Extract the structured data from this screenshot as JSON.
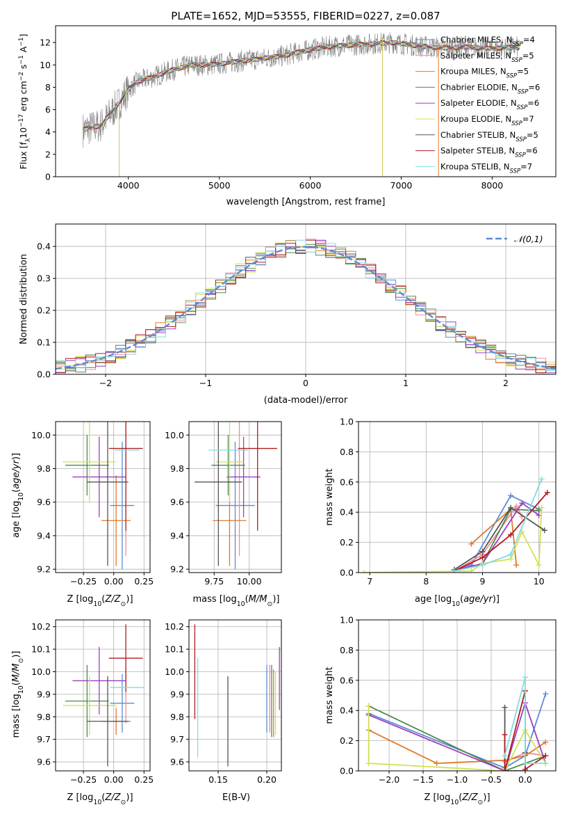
{
  "figure_title": "PLATE=1652, MJD=53555, FIBERID=0227, z=0.087",
  "legend_models": [
    {
      "label": "Chabrier MILES, N",
      "n": "4",
      "color": "#5b8bd6"
    },
    {
      "label": "Salpeter MILES, N",
      "n": "5",
      "color": "#f08a9a"
    },
    {
      "label": "Kroupa MILES, N",
      "n": "5",
      "color": "#e0782c"
    },
    {
      "label": "Chabrier ELODIE, N",
      "n": "6",
      "color": "#4a8a4a"
    },
    {
      "label": "Salpeter ELODIE, N",
      "n": "6",
      "color": "#9a3fbf"
    },
    {
      "label": "Kroupa ELODIE, N",
      "n": "7",
      "color": "#d4e050"
    },
    {
      "label": "Chabrier STELIB, N",
      "n": "5",
      "color": "#555555"
    },
    {
      "label": "Salpeter STELIB, N",
      "n": "6",
      "color": "#b01c1c"
    },
    {
      "label": "Kroupa STELIB, N",
      "n": "7",
      "color": "#80dde0"
    }
  ],
  "legend_sub": "SSP",
  "chart_data": [
    {
      "id": "spectrum",
      "type": "line",
      "title": "PLATE=1652, MJD=53555, FIBERID=0227, z=0.087",
      "xlabel": "wavelength [Angstrom, rest frame]",
      "ylabel": "Flux [f_λ 10^-17 erg cm^-2 s^-1 A^-1]",
      "xlim": [
        3200,
        8700
      ],
      "ylim": [
        0,
        13.5
      ],
      "xticks": [
        "4000",
        "5000",
        "6000",
        "7000",
        "8000"
      ],
      "yticks": [
        "0",
        "2",
        "4",
        "6",
        "8",
        "10",
        "12"
      ],
      "data_x": [
        3500,
        3700,
        3900,
        4000,
        4100,
        4300,
        4500,
        4700,
        4900,
        5100,
        5300,
        5500,
        5700,
        5900,
        6100,
        6300,
        6500,
        6700,
        6900,
        7100,
        7300,
        7500,
        7700,
        7900,
        8100,
        8300
      ],
      "model_y": [
        4.2,
        4.6,
        6.6,
        7.8,
        8.5,
        9.0,
        9.6,
        10.0,
        10.0,
        10.2,
        10.4,
        10.6,
        10.8,
        11.2,
        11.5,
        11.7,
        11.8,
        11.9,
        12.0,
        11.8,
        11.6,
        11.5,
        11.6,
        11.5,
        11.5,
        11.6
      ],
      "data_noise": 1.0,
      "spike_lines": [
        {
          "x": 3900,
          "ymin": 0,
          "ymax": 6.5
        },
        {
          "x": 6795,
          "ymin": 0,
          "ymax": 12.5
        },
        {
          "x": 7410,
          "ymin": 0,
          "ymax": 12.0
        }
      ]
    },
    {
      "id": "residuals",
      "type": "histogram",
      "xlabel": "(data-model)/error",
      "ylabel": "Normed distribution",
      "xlim": [
        -2.5,
        2.5
      ],
      "ylim": [
        0,
        0.47
      ],
      "xticks": [
        "−2",
        "−1",
        "0",
        "1",
        "2"
      ],
      "yticks": [
        "0.0",
        "0.1",
        "0.2",
        "0.3",
        "0.4"
      ],
      "bin_start": -2.5,
      "bin_width": 0.1,
      "reference_curve": {
        "name": "𝒩(0,1)",
        "color": "#5b8bd6"
      }
    },
    {
      "id": "age-vs-Z",
      "type": "errorbar",
      "xlabel": "Z [log10(Z/Z⊙)]",
      "ylabel": "age  [log10(age/yr)]",
      "xlim": [
        -0.48,
        0.3
      ],
      "ylim": [
        9.18,
        10.08
      ],
      "xticks": [
        "−0.25",
        "0.00",
        "0.25"
      ],
      "yticks": [
        "9.2",
        "9.4",
        "9.6",
        "9.8",
        "10.0"
      ],
      "points": [
        {
          "x": 0.07,
          "y": 9.58,
          "xerr": 0.1,
          "yerr": 0.38,
          "color": "#5b8bd6"
        },
        {
          "x": 0.1,
          "y": 9.72,
          "xerr": 0.0,
          "yerr": 0.44,
          "color": "#f08a9a"
        },
        {
          "x": 0.02,
          "y": 9.49,
          "xerr": 0.12,
          "yerr": 0.27,
          "color": "#e0782c"
        },
        {
          "x": -0.22,
          "y": 9.82,
          "xerr": 0.18,
          "yerr": 0.18,
          "color": "#4a8a4a"
        },
        {
          "x": -0.12,
          "y": 9.75,
          "xerr": 0.22,
          "yerr": 0.24,
          "color": "#9a3fbf"
        },
        {
          "x": -0.2,
          "y": 9.84,
          "xerr": 0.22,
          "yerr": 0.24,
          "color": "#d4e050"
        },
        {
          "x": -0.05,
          "y": 9.72,
          "xerr": 0.17,
          "yerr": 0.5,
          "color": "#555555"
        },
        {
          "x": 0.1,
          "y": 9.92,
          "xerr": 0.14,
          "yerr": 0.49,
          "color": "#b01c1c"
        },
        {
          "x": 0.11,
          "y": 9.91,
          "xerr": 0.1,
          "yerr": 0.0,
          "color": "#80dde0"
        }
      ]
    },
    {
      "id": "age-vs-mass",
      "type": "errorbar",
      "xlabel": "mass [log10(M/M⊙)]",
      "ylabel": "",
      "xlim": [
        9.57,
        10.23
      ],
      "ylim": [
        9.18,
        10.08
      ],
      "xticks": [
        "9.75",
        "10.00"
      ],
      "yticks": [
        "9.2",
        "9.4",
        "9.6",
        "9.8",
        "10.0"
      ],
      "points": [
        {
          "x": 9.9,
          "y": 9.58,
          "xerr": 0.14,
          "yerr": 0.38,
          "color": "#5b8bd6"
        },
        {
          "x": 9.93,
          "y": 9.72,
          "xerr": 0.0,
          "yerr": 0.44,
          "color": "#f08a9a"
        },
        {
          "x": 9.86,
          "y": 9.49,
          "xerr": 0.12,
          "yerr": 0.27,
          "color": "#e0782c"
        },
        {
          "x": 9.85,
          "y": 9.82,
          "xerr": 0.12,
          "yerr": 0.18,
          "color": "#4a8a4a"
        },
        {
          "x": 9.96,
          "y": 9.75,
          "xerr": 0.12,
          "yerr": 0.24,
          "color": "#9a3fbf"
        },
        {
          "x": 9.86,
          "y": 9.84,
          "xerr": 0.1,
          "yerr": 0.24,
          "color": "#d4e050"
        },
        {
          "x": 9.78,
          "y": 9.72,
          "xerr": 0.17,
          "yerr": 0.5,
          "color": "#555555"
        },
        {
          "x": 10.06,
          "y": 9.92,
          "xerr": 0.14,
          "yerr": 0.49,
          "color": "#b01c1c"
        },
        {
          "x": 9.85,
          "y": 9.91,
          "xerr": 0.14,
          "yerr": 0.0,
          "color": "#80dde0"
        }
      ]
    },
    {
      "id": "weight-vs-age",
      "type": "line",
      "xlabel": "age  [log10(age/yr)]",
      "ylabel": "mass weight",
      "xlim": [
        6.8,
        10.3
      ],
      "ylim": [
        0,
        1.0
      ],
      "xticks": [
        "7",
        "8",
        "9",
        "10"
      ],
      "yticks": [
        "0.0",
        "0.2",
        "0.4",
        "0.6",
        "0.8",
        "1.0"
      ],
      "series": [
        {
          "color": "#5b8bd6",
          "x": [
            8.5,
            8.8,
            9.5,
            10.0
          ],
          "y": [
            0.01,
            0.05,
            0.51,
            0.42
          ]
        },
        {
          "color": "#f08a9a",
          "x": [
            8.5,
            9.0,
            9.6,
            9.7
          ],
          "y": [
            0.01,
            0.12,
            0.44,
            0.37
          ]
        },
        {
          "color": "#e0782c",
          "x": [
            8.8,
            9.5,
            9.6
          ],
          "y": [
            0.19,
            0.42,
            0.05
          ]
        },
        {
          "color": "#4a8a4a",
          "x": [
            8.5,
            9.0,
            9.5,
            10.0
          ],
          "y": [
            0.01,
            0.06,
            0.42,
            0.41
          ]
        },
        {
          "color": "#9a3fbf",
          "x": [
            8.5,
            9.0,
            9.7,
            10.0
          ],
          "y": [
            0.01,
            0.06,
            0.46,
            0.38
          ]
        },
        {
          "color": "#d4e050",
          "x": [
            6.9,
            8.8,
            9.0,
            9.5,
            9.7,
            10.0,
            10.05
          ],
          "y": [
            0.0,
            0.01,
            0.06,
            0.09,
            0.27,
            0.05,
            0.43
          ]
        },
        {
          "color": "#555555",
          "x": [
            8.5,
            9.0,
            9.5,
            10.1
          ],
          "y": [
            0.02,
            0.14,
            0.43,
            0.28
          ]
        },
        {
          "color": "#b01c1c",
          "x": [
            8.5,
            9.0,
            9.5,
            10.15
          ],
          "y": [
            0.01,
            0.1,
            0.25,
            0.53
          ]
        },
        {
          "color": "#80dde0",
          "x": [
            8.5,
            9.0,
            9.5,
            10.05
          ],
          "y": [
            0.01,
            0.05,
            0.12,
            0.62
          ]
        }
      ]
    },
    {
      "id": "mass-vs-Z",
      "type": "errorbar",
      "xlabel": "Z [log10(Z/Z⊙)]",
      "ylabel": "mass [log10(M/M⊙)]",
      "xlim": [
        -0.48,
        0.3
      ],
      "ylim": [
        9.56,
        10.23
      ],
      "xticks": [
        "−0.25",
        "0.00",
        "0.25"
      ],
      "yticks": [
        "9.6",
        "9.7",
        "9.8",
        "9.9",
        "10.0",
        "10.1",
        "10.2"
      ],
      "points": [
        {
          "x": 0.07,
          "y": 9.86,
          "xerr": 0.1,
          "yerr": 0.13,
          "color": "#5b8bd6"
        },
        {
          "x": 0.1,
          "y": 9.9,
          "xerr": 0.0,
          "yerr": 0.13,
          "color": "#f08a9a"
        },
        {
          "x": 0.02,
          "y": 9.78,
          "xerr": 0.12,
          "yerr": 0.06,
          "color": "#e0782c"
        },
        {
          "x": -0.22,
          "y": 9.87,
          "xerr": 0.18,
          "yerr": 0.16,
          "color": "#4a8a4a"
        },
        {
          "x": -0.12,
          "y": 9.96,
          "xerr": 0.22,
          "yerr": 0.15,
          "color": "#9a3fbf"
        },
        {
          "x": -0.2,
          "y": 9.85,
          "xerr": 0.22,
          "yerr": 0.13,
          "color": "#d4e050"
        },
        {
          "x": -0.05,
          "y": 9.78,
          "xerr": 0.17,
          "yerr": 0.2,
          "color": "#555555"
        },
        {
          "x": 0.1,
          "y": 10.06,
          "xerr": 0.14,
          "yerr": 0.15,
          "color": "#b01c1c"
        },
        {
          "x": 0.11,
          "y": 9.93,
          "xerr": 0.14,
          "yerr": 0.0,
          "color": "#80dde0"
        }
      ]
    },
    {
      "id": "mass-vs-EBV",
      "type": "errorbar",
      "xlabel": "E(B-V)",
      "ylabel": "",
      "xlim": [
        0.12,
        0.215
      ],
      "ylim": [
        9.56,
        10.23
      ],
      "xticks": [
        "0.15",
        "0.20"
      ],
      "yticks": [
        "9.6",
        "9.7",
        "9.8",
        "9.9",
        "10.0",
        "10.1",
        "10.2"
      ],
      "points": [
        {
          "x": 0.2,
          "y": 9.88,
          "xerr": 0.0,
          "yerr": 0.15,
          "color": "#5b8bd6"
        },
        {
          "x": 0.203,
          "y": 9.88,
          "xerr": 0.0,
          "yerr": 0.15,
          "color": "#f08a9a"
        },
        {
          "x": 0.207,
          "y": 9.86,
          "xerr": 0.0,
          "yerr": 0.15,
          "color": "#e0782c"
        },
        {
          "x": 0.205,
          "y": 9.87,
          "xerr": 0.0,
          "yerr": 0.16,
          "color": "#4a8a4a"
        },
        {
          "x": 0.213,
          "y": 9.97,
          "xerr": 0.0,
          "yerr": 0.14,
          "color": "#9a3fbf"
        },
        {
          "x": 0.209,
          "y": 9.86,
          "xerr": 0.0,
          "yerr": 0.14,
          "color": "#d4e050"
        },
        {
          "x": 0.16,
          "y": 9.78,
          "xerr": 0.0,
          "yerr": 0.2,
          "color": "#555555"
        },
        {
          "x": 0.126,
          "y": 10.0,
          "xerr": 0.0,
          "yerr": 0.21,
          "color": "#b01c1c"
        },
        {
          "x": 0.129,
          "y": 9.84,
          "xerr": 0.0,
          "yerr": 0.22,
          "color": "#80dde0"
        }
      ]
    },
    {
      "id": "weight-vs-Z",
      "type": "line",
      "xlabel": "Z [log10(Z/Z⊙)]",
      "ylabel": "mass weight",
      "xlim": [
        -2.45,
        0.45
      ],
      "ylim": [
        0,
        1.0
      ],
      "xticks": [
        "−2.0",
        "−1.5",
        "−1.0",
        "−0.5",
        "0.0"
      ],
      "yticks": [
        "0.0",
        "0.2",
        "0.4",
        "0.6",
        "0.8",
        "1.0"
      ],
      "series": [
        {
          "color": "#5b8bd6",
          "x": [
            -2.3,
            -0.3,
            0.0,
            0.3
          ],
          "y": [
            0.38,
            0.02,
            0.1,
            0.51
          ]
        },
        {
          "color": "#f08a9a",
          "x": [
            -0.3,
            0.0,
            0.3
          ],
          "y": [
            0.06,
            0.12,
            0.1
          ]
        },
        {
          "color": "#e0782c",
          "x": [
            -2.3,
            -1.3,
            -0.3,
            0.0,
            0.3
          ],
          "y": [
            0.27,
            0.05,
            0.07,
            0.1,
            0.19
          ]
        },
        {
          "color": "#4a8a4a",
          "x": [
            -2.3,
            -0.3,
            0.0,
            0.3
          ],
          "y": [
            0.43,
            0.0,
            0.05,
            0.1
          ]
        },
        {
          "color": "#9a3fbf",
          "x": [
            -2.3,
            -0.3,
            0.0,
            0.3
          ],
          "y": [
            0.37,
            0.0,
            0.45,
            0.05
          ]
        },
        {
          "color": "#d4e050",
          "x": [
            -2.3,
            -2.3,
            -0.3,
            0.0,
            0.3
          ],
          "y": [
            0.43,
            0.05,
            0.0,
            0.27,
            0.05
          ]
        },
        {
          "color": "#555555",
          "x": [
            -0.3,
            -0.3,
            0.0,
            0.0
          ],
          "y": [
            0.42,
            0.0,
            0.0,
            0.12
          ]
        },
        {
          "color": "#b01c1c",
          "x": [
            -0.3,
            -0.3,
            0.0,
            0.0,
            0.3
          ],
          "y": [
            0.24,
            0.0,
            0.53,
            0.01,
            0.1
          ]
        },
        {
          "color": "#80dde0",
          "x": [
            -0.3,
            0.0,
            0.0,
            0.3
          ],
          "y": [
            0.1,
            0.62,
            0.05,
            0.05
          ]
        }
      ]
    }
  ]
}
